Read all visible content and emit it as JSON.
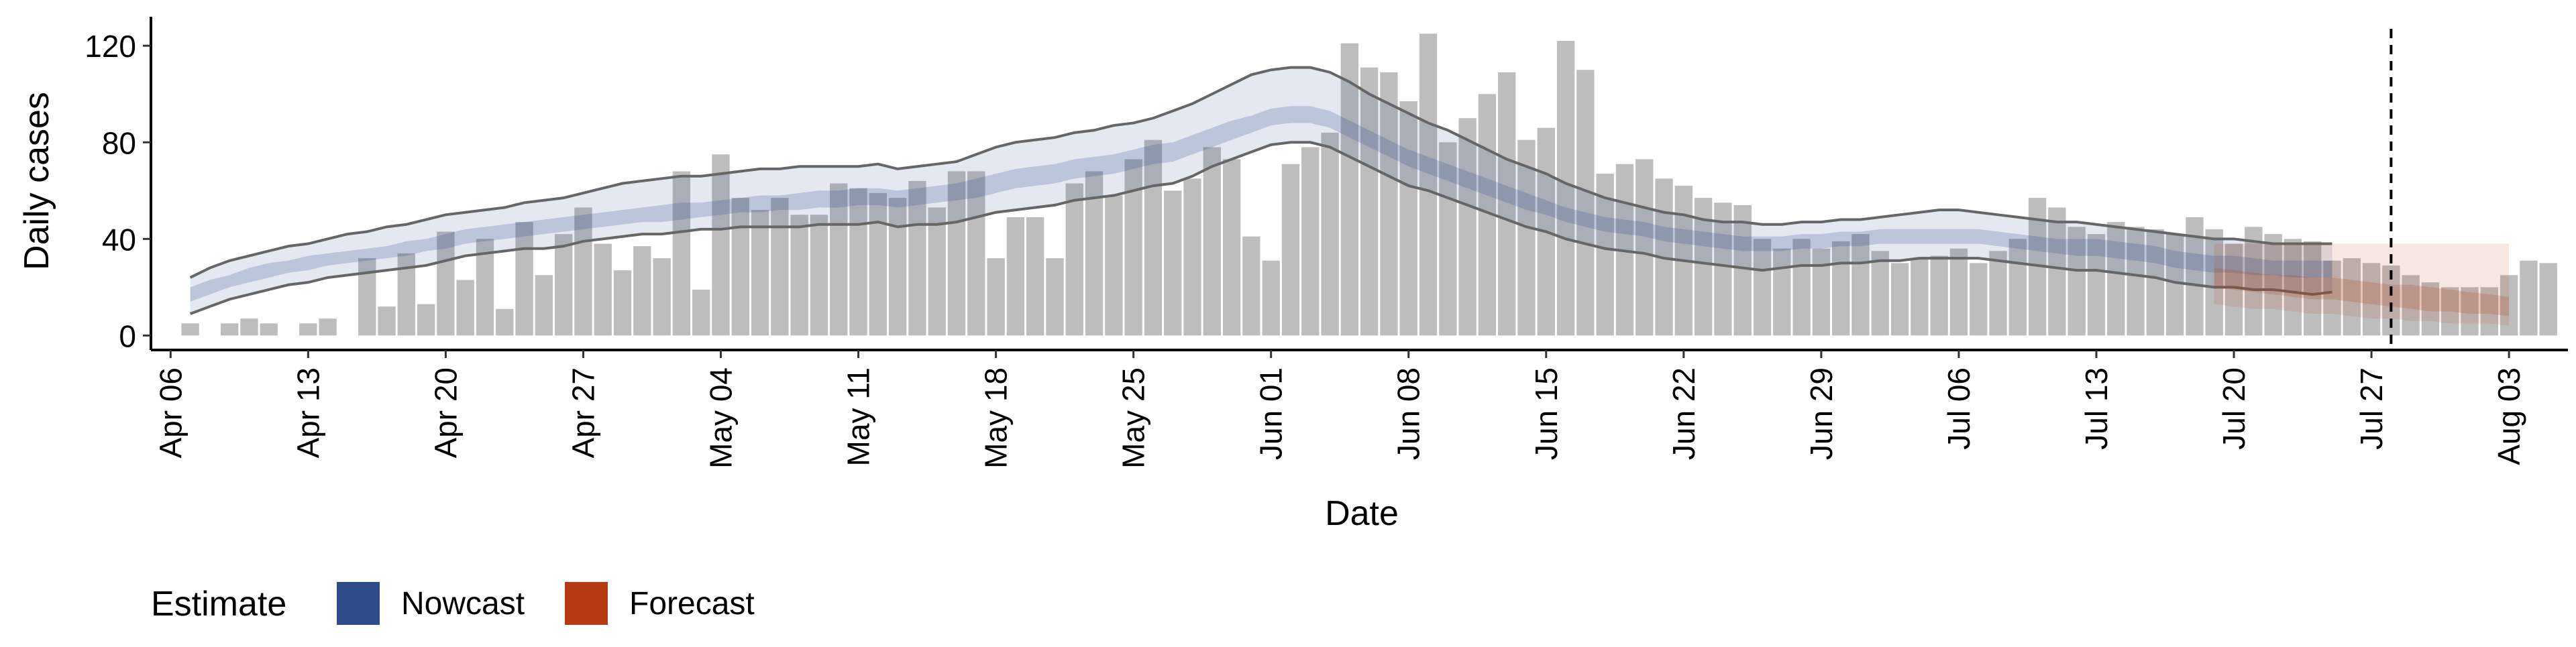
{
  "chart_data": {
    "type": "bar",
    "xlabel": "Date",
    "ylabel": "Daily cases",
    "ylim": [
      -6,
      132
    ],
    "y_ticks": [
      0,
      40,
      80,
      120
    ],
    "x_ticks": [
      {
        "date": "2020-04-06",
        "label": "Apr 06"
      },
      {
        "date": "2020-04-13",
        "label": "Apr 13"
      },
      {
        "date": "2020-04-20",
        "label": "Apr 20"
      },
      {
        "date": "2020-04-27",
        "label": "Apr 27"
      },
      {
        "date": "2020-05-04",
        "label": "May 04"
      },
      {
        "date": "2020-05-11",
        "label": "May 11"
      },
      {
        "date": "2020-05-18",
        "label": "May 18"
      },
      {
        "date": "2020-05-25",
        "label": "May 25"
      },
      {
        "date": "2020-06-01",
        "label": "Jun 01"
      },
      {
        "date": "2020-06-08",
        "label": "Jun 08"
      },
      {
        "date": "2020-06-15",
        "label": "Jun 15"
      },
      {
        "date": "2020-06-22",
        "label": "Jun 22"
      },
      {
        "date": "2020-06-29",
        "label": "Jun 29"
      },
      {
        "date": "2020-07-06",
        "label": "Jul 06"
      },
      {
        "date": "2020-07-13",
        "label": "Jul 13"
      },
      {
        "date": "2020-07-20",
        "label": "Jul 20"
      },
      {
        "date": "2020-07-27",
        "label": "Jul 27"
      },
      {
        "date": "2020-08-03",
        "label": "Aug 03"
      }
    ],
    "xlim": [
      "2020-04-05",
      "2020-08-06"
    ],
    "grid": false,
    "bars": {
      "name": "Daily cases",
      "color": "#bdbdbd",
      "start": "2020-04-07",
      "values": [
        5,
        0,
        5,
        7,
        5,
        0,
        5,
        7,
        0,
        32,
        12,
        34,
        13,
        43,
        23,
        40,
        11,
        47,
        25,
        42,
        53,
        38,
        27,
        37,
        32,
        68,
        19,
        75,
        57,
        52,
        57,
        50,
        50,
        63,
        61,
        59,
        57,
        64,
        53,
        68,
        68,
        32,
        49,
        49,
        32,
        63,
        68,
        58,
        73,
        81,
        60,
        65,
        78,
        73,
        41,
        31,
        71,
        78,
        84,
        121,
        111,
        109,
        97,
        125,
        80,
        90,
        100,
        109,
        81,
        86,
        122,
        110,
        67,
        71,
        73,
        65,
        62,
        57,
        55,
        54,
        40,
        36,
        40,
        36,
        39,
        42,
        35,
        30,
        32,
        33,
        36,
        30,
        35,
        40,
        57,
        53,
        45,
        42,
        47,
        45,
        44,
        42,
        49,
        44,
        38,
        45,
        42,
        40,
        39,
        31,
        32,
        30,
        29,
        25,
        22,
        20,
        20,
        20,
        25,
        31,
        30
      ]
    },
    "nowcast": {
      "name": "Nowcast",
      "color": "#2f4b8a",
      "start": "2020-04-07",
      "outer_lower": [
        9,
        12,
        15,
        17,
        19,
        21,
        22,
        24,
        25,
        26,
        27,
        28,
        29,
        31,
        33,
        34,
        35,
        36,
        36,
        37,
        39,
        40,
        41,
        42,
        42,
        43,
        44,
        44,
        45,
        45,
        45,
        45,
        46,
        46,
        46,
        47,
        45,
        46,
        46,
        47,
        49,
        51,
        52,
        53,
        54,
        56,
        57,
        58,
        60,
        62,
        63,
        66,
        70,
        73,
        76,
        79,
        80,
        80,
        78,
        74,
        70,
        66,
        62,
        60,
        57,
        54,
        51,
        48,
        45,
        43,
        40,
        38,
        36,
        35,
        34,
        32,
        31,
        30,
        29,
        28,
        27,
        28,
        29,
        29,
        30,
        30,
        31,
        31,
        32,
        32,
        32,
        32,
        31,
        30,
        29,
        28,
        27,
        27,
        26,
        25,
        24,
        22,
        21,
        20,
        20,
        19,
        19,
        18,
        17,
        18
      ],
      "inner_lower": [
        14,
        17,
        20,
        22,
        24,
        26,
        27,
        29,
        30,
        31,
        32,
        33,
        35,
        36,
        38,
        39,
        40,
        41,
        42,
        43,
        44,
        45,
        46,
        47,
        47,
        48,
        49,
        50,
        51,
        51,
        52,
        52,
        53,
        53,
        54,
        54,
        53,
        54,
        55,
        56,
        57,
        59,
        61,
        62,
        63,
        65,
        66,
        67,
        69,
        71,
        72,
        75,
        78,
        81,
        84,
        87,
        88,
        88,
        86,
        82,
        78,
        74,
        70,
        67,
        64,
        61,
        58,
        55,
        52,
        50,
        47,
        45,
        43,
        42,
        41,
        39,
        38,
        37,
        36,
        35,
        35,
        35,
        36,
        36,
        37,
        37,
        38,
        38,
        38,
        38,
        38,
        38,
        37,
        36,
        35,
        34,
        33,
        33,
        32,
        31,
        30,
        28,
        27,
        26,
        26,
        25,
        25,
        24,
        24,
        24
      ],
      "inner_upper": [
        20,
        23,
        25,
        28,
        30,
        31,
        33,
        34,
        35,
        36,
        37,
        39,
        40,
        42,
        44,
        45,
        46,
        47,
        48,
        49,
        50,
        51,
        52,
        53,
        54,
        55,
        55,
        56,
        57,
        58,
        58,
        59,
        60,
        60,
        61,
        61,
        60,
        61,
        62,
        63,
        65,
        67,
        69,
        70,
        71,
        73,
        74,
        75,
        77,
        79,
        80,
        83,
        86,
        89,
        91,
        94,
        95,
        95,
        93,
        89,
        85,
        81,
        77,
        74,
        71,
        68,
        65,
        62,
        59,
        56,
        53,
        51,
        49,
        48,
        47,
        45,
        44,
        43,
        42,
        41,
        41,
        41,
        42,
        42,
        43,
        43,
        44,
        44,
        44,
        44,
        44,
        44,
        43,
        42,
        41,
        40,
        40,
        40,
        39,
        38,
        37,
        35,
        34,
        33,
        33,
        32,
        31,
        31,
        31,
        31
      ],
      "outer_upper": [
        24,
        28,
        31,
        33,
        35,
        37,
        38,
        40,
        42,
        43,
        45,
        46,
        48,
        50,
        51,
        52,
        53,
        55,
        56,
        57,
        59,
        61,
        63,
        64,
        65,
        66,
        66,
        67,
        68,
        69,
        69,
        70,
        70,
        70,
        70,
        71,
        69,
        70,
        71,
        72,
        75,
        78,
        80,
        81,
        82,
        84,
        85,
        87,
        88,
        90,
        93,
        96,
        100,
        104,
        108,
        110,
        111,
        111,
        109,
        105,
        100,
        96,
        92,
        88,
        85,
        81,
        77,
        73,
        70,
        67,
        63,
        60,
        57,
        55,
        53,
        51,
        50,
        48,
        47,
        47,
        46,
        46,
        47,
        47,
        48,
        48,
        49,
        50,
        51,
        52,
        52,
        51,
        50,
        49,
        48,
        47,
        47,
        46,
        45,
        44,
        43,
        42,
        41,
        40,
        40,
        39,
        38,
        38,
        38,
        38
      ]
    },
    "forecast": {
      "name": "Forecast",
      "color": "#b53a12",
      "start": "2020-07-19",
      "outer_lower": [
        13,
        12,
        11,
        11,
        10,
        9,
        9,
        8,
        7,
        7,
        6,
        6,
        5,
        5,
        5,
        4
      ],
      "inner_lower": [
        20,
        19,
        18,
        17,
        16,
        15,
        15,
        14,
        13,
        12,
        11,
        10,
        10,
        9,
        9,
        8
      ],
      "inner_upper": [
        28,
        27,
        26,
        25,
        25,
        24,
        24,
        23,
        22,
        21,
        21,
        20,
        19,
        18,
        17,
        16
      ],
      "outer_upper": [
        38,
        38,
        38,
        38,
        38,
        38,
        38,
        38,
        38,
        38,
        38,
        38,
        38,
        38,
        38,
        38
      ]
    },
    "vline": {
      "date": "2020-07-28",
      "style": "dashed"
    },
    "legend": {
      "title": "Estimate",
      "placement": "bottom-left",
      "items": [
        {
          "name": "Nowcast",
          "color": "#2f4b8a"
        },
        {
          "name": "Forecast",
          "color": "#b53a12"
        }
      ]
    }
  }
}
